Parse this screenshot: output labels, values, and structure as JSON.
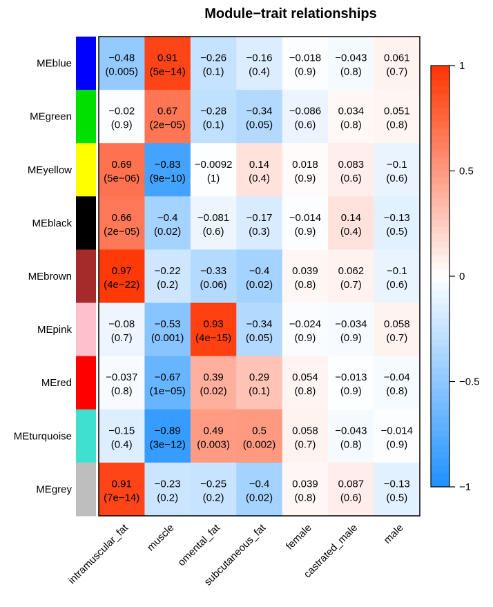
{
  "chart_data": {
    "type": "heatmap",
    "title": "Module−trait relationships",
    "rows": [
      {
        "label": "MEblue",
        "color": "#0000FF"
      },
      {
        "label": "MEgreen",
        "color": "#00E000"
      },
      {
        "label": "MEyellow",
        "color": "#FFFF00"
      },
      {
        "label": "MEblack",
        "color": "#000000"
      },
      {
        "label": "MEbrown",
        "color": "#A52A2A"
      },
      {
        "label": "MEpink",
        "color": "#FFC0CB"
      },
      {
        "label": "MEred",
        "color": "#FF0000"
      },
      {
        "label": "MEturquoise",
        "color": "#40E0D0"
      },
      {
        "label": "MEgrey",
        "color": "#BEBEBE"
      }
    ],
    "columns": [
      "intramuscular_fat",
      "muscle",
      "omental_fat",
      "subcutaneous_fat",
      "female",
      "castrated_male",
      "male"
    ],
    "values": [
      [
        -0.48,
        0.91,
        -0.26,
        -0.16,
        -0.018,
        -0.043,
        0.061
      ],
      [
        -0.02,
        0.67,
        -0.28,
        -0.34,
        -0.086,
        0.034,
        0.051
      ],
      [
        0.69,
        -0.83,
        -0.0092,
        0.14,
        0.018,
        0.083,
        -0.1
      ],
      [
        0.66,
        -0.4,
        -0.081,
        -0.17,
        -0.014,
        0.14,
        -0.13
      ],
      [
        0.97,
        -0.22,
        -0.33,
        -0.4,
        0.039,
        0.062,
        -0.1
      ],
      [
        -0.08,
        -0.53,
        0.93,
        -0.34,
        -0.024,
        -0.034,
        0.058
      ],
      [
        -0.037,
        -0.67,
        0.39,
        0.29,
        0.054,
        -0.013,
        -0.04
      ],
      [
        -0.15,
        -0.89,
        0.49,
        0.5,
        0.058,
        -0.043,
        -0.014
      ],
      [
        0.91,
        -0.23,
        -0.25,
        -0.4,
        0.039,
        0.087,
        -0.13
      ]
    ],
    "cell_labels": [
      [
        [
          "−0.48",
          "(0.005)"
        ],
        [
          "0.91",
          "(5e−14)"
        ],
        [
          "−0.26",
          "(0.1)"
        ],
        [
          "−0.16",
          "(0.4)"
        ],
        [
          "−0.018",
          "(0.9)"
        ],
        [
          "−0.043",
          "(0.8)"
        ],
        [
          "0.061",
          "(0.7)"
        ]
      ],
      [
        [
          "−0.02",
          "(0.9)"
        ],
        [
          "0.67",
          "(2e−05)"
        ],
        [
          "−0.28",
          "(0.1)"
        ],
        [
          "−0.34",
          "(0.05)"
        ],
        [
          "−0.086",
          "(0.6)"
        ],
        [
          "0.034",
          "(0.8)"
        ],
        [
          "0.051",
          "(0.8)"
        ]
      ],
      [
        [
          "0.69",
          "(5e−06)"
        ],
        [
          "−0.83",
          "(9e−10)"
        ],
        [
          "−0.0092",
          "(1)"
        ],
        [
          "0.14",
          "(0.4)"
        ],
        [
          "0.018",
          "(0.9)"
        ],
        [
          "0.083",
          "(0.6)"
        ],
        [
          "−0.1",
          "(0.6)"
        ]
      ],
      [
        [
          "0.66",
          "(2e−05)"
        ],
        [
          "−0.4",
          "(0.02)"
        ],
        [
          "−0.081",
          "(0.6)"
        ],
        [
          "−0.17",
          "(0.3)"
        ],
        [
          "−0.014",
          "(0.9)"
        ],
        [
          "0.14",
          "(0.4)"
        ],
        [
          "−0.13",
          "(0.5)"
        ]
      ],
      [
        [
          "0.97",
          "(4e−22)"
        ],
        [
          "−0.22",
          "(0.2)"
        ],
        [
          "−0.33",
          "(0.06)"
        ],
        [
          "−0.4",
          "(0.02)"
        ],
        [
          "0.039",
          "(0.8)"
        ],
        [
          "0.062",
          "(0.7)"
        ],
        [
          "−0.1",
          "(0.6)"
        ]
      ],
      [
        [
          "−0.08",
          "(0.7)"
        ],
        [
          "−0.53",
          "(0.001)"
        ],
        [
          "0.93",
          "(4e−15)"
        ],
        [
          "−0.34",
          "(0.05)"
        ],
        [
          "−0.024",
          "(0.9)"
        ],
        [
          "−0.034",
          "(0.9)"
        ],
        [
          "0.058",
          "(0.7)"
        ]
      ],
      [
        [
          "−0.037",
          "(0.8)"
        ],
        [
          "−0.67",
          "(1e−05)"
        ],
        [
          "0.39",
          "(0.02)"
        ],
        [
          "0.29",
          "(0.1)"
        ],
        [
          "0.054",
          "(0.8)"
        ],
        [
          "−0.013",
          "(0.9)"
        ],
        [
          "−0.04",
          "(0.8)"
        ]
      ],
      [
        [
          "−0.15",
          "(0.4)"
        ],
        [
          "−0.89",
          "(3e−12)"
        ],
        [
          "0.49",
          "(0.003)"
        ],
        [
          "0.5",
          "(0.002)"
        ],
        [
          "0.058",
          "(0.7)"
        ],
        [
          "−0.043",
          "(0.8)"
        ],
        [
          "−0.014",
          "(0.9)"
        ]
      ],
      [
        [
          "0.91",
          "(7e−14)"
        ],
        [
          "−0.23",
          "(0.2)"
        ],
        [
          "−0.25",
          "(0.2)"
        ],
        [
          "−0.4",
          "(0.02)"
        ],
        [
          "0.039",
          "(0.8)"
        ],
        [
          "0.087",
          "(0.6)"
        ],
        [
          "−0.13",
          "(0.5)"
        ]
      ]
    ],
    "color_scale": {
      "min": -1,
      "max": 1,
      "low_color": "#1E90FF",
      "mid_color": "#FFFFFF",
      "high_color": "#FF3300",
      "ticks": [
        1,
        0.5,
        0,
        -0.5,
        -1
      ],
      "tick_labels": [
        "1",
        "0.5",
        "0",
        "−0.5",
        "−1"
      ]
    },
    "legend_placement": "right"
  }
}
